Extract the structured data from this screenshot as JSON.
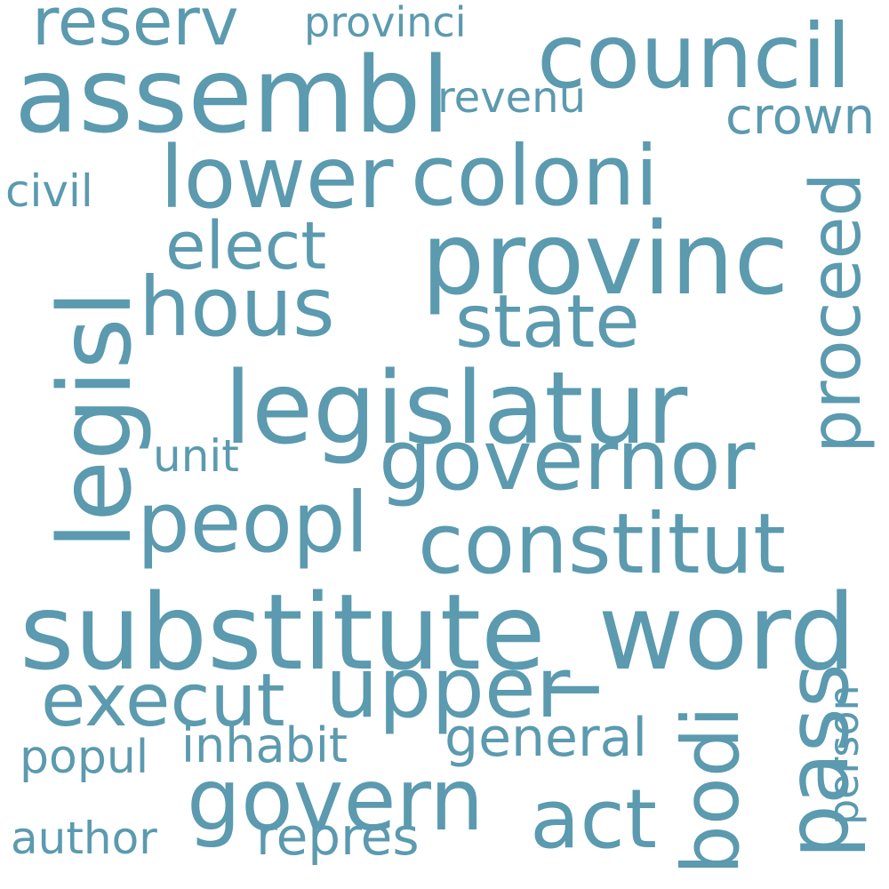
{
  "style": {
    "word_color": "#5b9aaf",
    "background": "#ffffff"
  },
  "words": [
    "substitute_word",
    "legislatur",
    "assembl",
    "provinc",
    "council",
    "governor",
    "constitut",
    "legisl",
    "coloni",
    "govern",
    "lower",
    "hous",
    "upper",
    "peopl",
    "state",
    "execut",
    "proceed",
    "act",
    "elect",
    "pass",
    "reserv",
    "bodi",
    "repres",
    "general",
    "revenu",
    "inhabit",
    "crown",
    "provinci",
    "unit",
    "civil",
    "popul",
    "author",
    "person"
  ]
}
